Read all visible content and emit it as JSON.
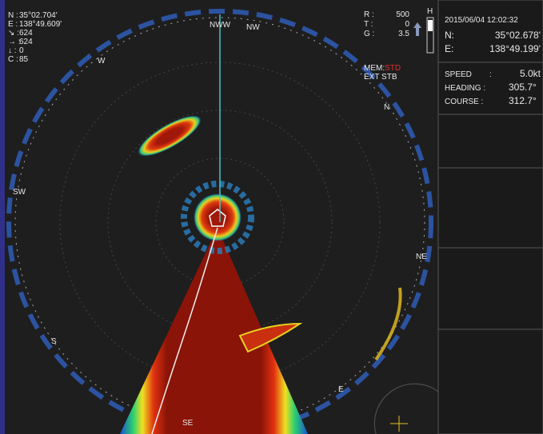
{
  "position": {
    "rows": [
      {
        "label": "N :",
        "value": "35°02.704'"
      },
      {
        "label": "E :",
        "value": "138°49.609'"
      },
      {
        "label": "↘ :",
        "value": "624"
      },
      {
        "label": "→ :",
        "value": "624"
      },
      {
        "label": "↓ :",
        "value": "0"
      },
      {
        "label": "C :",
        "value": "85"
      }
    ]
  },
  "settings": {
    "rows": [
      {
        "label": "R :",
        "value": "500"
      },
      {
        "label": "T :",
        "value": "0"
      },
      {
        "label": "G :",
        "value": "3.5"
      }
    ],
    "mem_label": "MEM:",
    "mem_value": "STD",
    "ext": "EXT STB",
    "gauge": "H"
  },
  "info": {
    "datetime": "2015/06/04 12:02:32",
    "lat_label": "N:",
    "lat": "35°02.678'",
    "lon_label": "E:",
    "lon": "138°49.199'",
    "speed_label": "SPEED",
    "speed_sep": ":",
    "speed": "5.0kt",
    "heading_label": "HEADING :",
    "heading": "305.7°",
    "course_label": "COURSE :",
    "course": "312.7°"
  },
  "compass": [
    "NWW",
    "NW",
    "W",
    "N",
    "SW",
    "NE",
    "S",
    "E",
    "SE"
  ]
}
